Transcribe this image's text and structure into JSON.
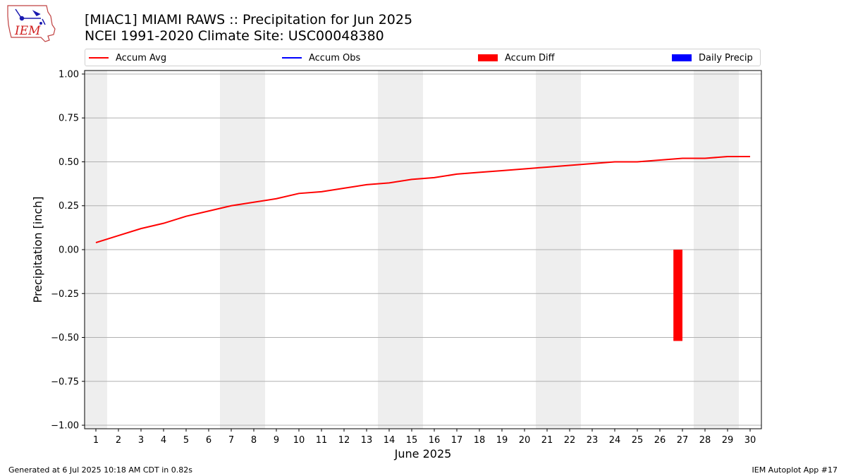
{
  "header": {
    "title_line1": "[MIAC1] MIAMI RAWS :: Precipitation for Jun 2025",
    "title_line2": "NCEI 1991-2020 Climate Site: USC00048380",
    "logo_text": "IEM"
  },
  "footer": {
    "left": "Generated at 6 Jul 2025 10:18 AM CDT in 0.82s",
    "right": "IEM Autoplot App #17"
  },
  "legend": {
    "items": [
      {
        "label": "Accum Avg",
        "kind": "line",
        "color": "#ff0000"
      },
      {
        "label": "Accum Obs",
        "kind": "line",
        "color": "#0000ff"
      },
      {
        "label": "Accum Diff",
        "kind": "patch",
        "color": "#ff0000"
      },
      {
        "label": "Daily Precip",
        "kind": "patch",
        "color": "#0000ff"
      }
    ]
  },
  "chart_data": {
    "type": "line",
    "xlabel": "June 2025",
    "ylabel": "Precipitation [inch]",
    "xlim": [
      0.5,
      30.5
    ],
    "ylim": [
      -1.02,
      1.02
    ],
    "x": [
      1,
      2,
      3,
      4,
      5,
      6,
      7,
      8,
      9,
      10,
      11,
      12,
      13,
      14,
      15,
      16,
      17,
      18,
      19,
      20,
      21,
      22,
      23,
      24,
      25,
      26,
      27,
      28,
      29,
      30
    ],
    "x_ticks": [
      "1",
      "2",
      "3",
      "4",
      "5",
      "6",
      "7",
      "8",
      "9",
      "10",
      "11",
      "12",
      "13",
      "14",
      "15",
      "16",
      "17",
      "18",
      "19",
      "20",
      "21",
      "22",
      "23",
      "24",
      "25",
      "26",
      "27",
      "28",
      "29",
      "30"
    ],
    "y_ticks": [
      1.0,
      0.75,
      0.5,
      0.25,
      0.0,
      -0.25,
      -0.5,
      -0.75,
      -1.0
    ],
    "y_tick_labels": [
      "1.00",
      "0.75",
      "0.50",
      "0.25",
      "0.00",
      "−0.25",
      "−0.50",
      "−0.75",
      "−1.00"
    ],
    "grid": "horizontal",
    "weekend_shading": [
      [
        0.5,
        1.5
      ],
      [
        6.5,
        8.5
      ],
      [
        13.5,
        15.5
      ],
      [
        20.5,
        22.5
      ],
      [
        27.5,
        29.5
      ]
    ],
    "shade_color": "#eeeeee",
    "series": [
      {
        "name": "Accum Avg",
        "kind": "line",
        "color": "#ff0000",
        "values": [
          0.04,
          0.08,
          0.12,
          0.15,
          0.19,
          0.22,
          0.25,
          0.27,
          0.29,
          0.32,
          0.33,
          0.35,
          0.37,
          0.38,
          0.4,
          0.41,
          0.43,
          0.44,
          0.45,
          0.46,
          0.47,
          0.48,
          0.49,
          0.5,
          0.5,
          0.51,
          0.52,
          0.52,
          0.53,
          0.53
        ]
      },
      {
        "name": "Accum Diff",
        "kind": "bar",
        "color": "#ff0000",
        "points": [
          {
            "x": 26.8,
            "value": -0.52
          }
        ]
      }
    ]
  }
}
